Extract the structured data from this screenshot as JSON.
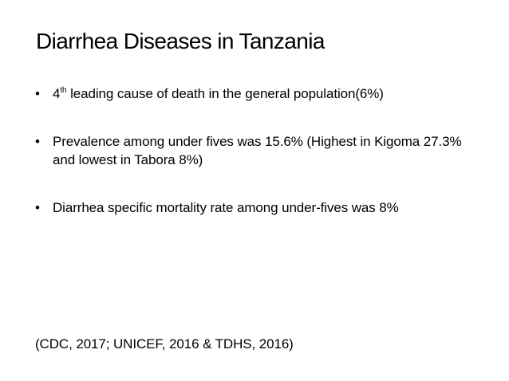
{
  "slide": {
    "title": "Diarrhea Diseases in Tanzania",
    "bullet_glyph": "•",
    "bullets": [
      {
        "rank_number": "4",
        "rank_superscript": "th",
        "text": " leading cause of death in the general population(6%)"
      },
      {
        "text": "Prevalence among under fives was 15.6% (Highest in Kigoma 27.3% and lowest in Tabora 8%)"
      },
      {
        "text": "Diarrhea specific mortality rate among under-fives was 8%"
      }
    ],
    "citation": "(CDC, 2017; UNICEF, 2016 & TDHS, 2016)"
  }
}
